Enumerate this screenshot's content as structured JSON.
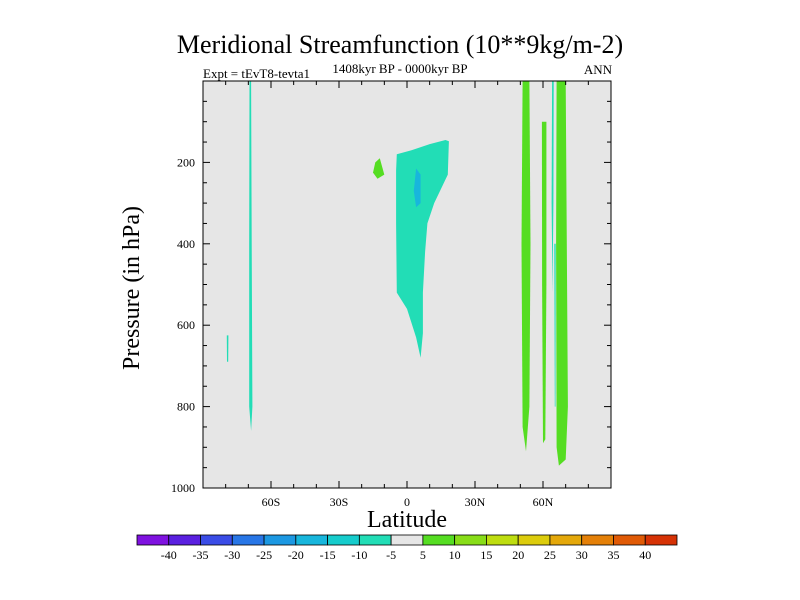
{
  "chart_data": {
    "type": "contour",
    "title": "Meridional Streamfunction (10**9kg/m-2)",
    "subtitle": "1408kyr BP - 0000kyr BP",
    "left_annotation": "Expt = tEvT8-tevta1",
    "right_annotation": "ANN",
    "xlabel": "Latitude",
    "ylabel": "Pressure (in hPa)",
    "xlim": [
      -90,
      90
    ],
    "ylim": [
      1000,
      0
    ],
    "x_ticks": [
      {
        "value": -60,
        "label": "60S"
      },
      {
        "value": -30,
        "label": "30S"
      },
      {
        "value": 0,
        "label": "0"
      },
      {
        "value": 30,
        "label": "30N"
      },
      {
        "value": 60,
        "label": "60N"
      }
    ],
    "y_ticks": [
      {
        "value": 200,
        "label": "200"
      },
      {
        "value": 400,
        "label": "400"
      },
      {
        "value": 600,
        "label": "600"
      },
      {
        "value": 800,
        "label": "800"
      },
      {
        "value": 1000,
        "label": "1000"
      }
    ],
    "background_color": "#e6e6e6",
    "regions": [
      {
        "name": "sh-high-lat-thin-band",
        "level": -10,
        "color": "#22ddb6",
        "points": [
          [
            -69.5,
            0
          ],
          [
            -68.8,
            0
          ],
          [
            -68.5,
            400
          ],
          [
            -68.2,
            800
          ],
          [
            -68.8,
            860
          ],
          [
            -69.6,
            800
          ],
          [
            -69.6,
            400
          ]
        ]
      },
      {
        "name": "sh-small-line",
        "level": -10,
        "color": "#22ddb6",
        "points": [
          [
            -79.5,
            625
          ],
          [
            -78.8,
            625
          ],
          [
            -78.9,
            690
          ],
          [
            -79.4,
            690
          ]
        ]
      },
      {
        "name": "tropical-negative-cell",
        "level": -10,
        "color": "#22ddb6",
        "points": [
          [
            -4.5,
            180
          ],
          [
            2,
            170
          ],
          [
            10,
            155
          ],
          [
            17,
            145
          ],
          [
            18.5,
            148
          ],
          [
            18,
            230
          ],
          [
            15,
            265
          ],
          [
            12,
            300
          ],
          [
            9,
            350
          ],
          [
            8,
            420
          ],
          [
            7,
            520
          ],
          [
            7,
            620
          ],
          [
            6,
            680
          ],
          [
            4,
            630
          ],
          [
            0,
            560
          ],
          [
            -4.5,
            520
          ],
          [
            -4.8,
            350
          ],
          [
            -4.8,
            220
          ]
        ]
      },
      {
        "name": "tropical-core",
        "level": -15,
        "color": "#18b6dc",
        "points": [
          [
            4,
            215
          ],
          [
            6,
            230
          ],
          [
            6,
            300
          ],
          [
            4,
            310
          ],
          [
            3,
            270
          ]
        ]
      },
      {
        "name": "sh-positive-patch",
        "level": 5,
        "color": "#55dd22",
        "points": [
          [
            -14,
            200
          ],
          [
            -12,
            190
          ],
          [
            -10,
            230
          ],
          [
            -13,
            240
          ],
          [
            -15,
            225
          ]
        ]
      },
      {
        "name": "nh-positive-band-1",
        "level": 5,
        "color": "#55dd22",
        "points": [
          [
            51,
            0
          ],
          [
            54,
            0
          ],
          [
            54.5,
            400
          ],
          [
            54,
            800
          ],
          [
            52.5,
            910
          ],
          [
            51,
            850
          ],
          [
            50.5,
            400
          ]
        ]
      },
      {
        "name": "nh-positive-band-2",
        "level": 5,
        "color": "#55dd22",
        "points": [
          [
            59.5,
            100
          ],
          [
            61.5,
            100
          ],
          [
            61.5,
            500
          ],
          [
            61,
            880
          ],
          [
            60,
            890
          ],
          [
            59.6,
            500
          ]
        ]
      },
      {
        "name": "nh-positive-band-3",
        "level": 5,
        "color": "#55dd22",
        "points": [
          [
            66,
            0
          ],
          [
            70,
            0
          ],
          [
            70.5,
            400
          ],
          [
            71,
            800
          ],
          [
            70,
            930
          ],
          [
            67,
            945
          ],
          [
            66,
            900
          ],
          [
            65.8,
            400
          ]
        ]
      },
      {
        "name": "nh-negative-line-1",
        "level": -10,
        "color": "#22ddb6",
        "points": [
          [
            64,
            0
          ],
          [
            64.7,
            0
          ],
          [
            64.6,
            300
          ],
          [
            64.2,
            520
          ],
          [
            63.8,
            300
          ]
        ]
      },
      {
        "name": "nh-negative-line-2",
        "level": -10,
        "color": "#22ddb6",
        "points": [
          [
            65,
            400
          ],
          [
            65.6,
            400
          ],
          [
            65.5,
            800
          ],
          [
            65.2,
            800
          ]
        ]
      }
    ],
    "colorbar": {
      "labels": [
        "-40",
        "-35",
        "-30",
        "-25",
        "-20",
        "-15",
        "-10",
        "-5",
        "5",
        "10",
        "15",
        "20",
        "25",
        "30",
        "35",
        "40"
      ],
      "colors": [
        "#7f12e0",
        "#5a20e0",
        "#3a4ce6",
        "#2876e6",
        "#1c98e2",
        "#18b6dc",
        "#16cccc",
        "#22ddb6",
        "#e6e6e6",
        "#55dd22",
        "#88dd18",
        "#bedd10",
        "#dccc0c",
        "#e4a80a",
        "#e48008",
        "#e05a06",
        "#d63205"
      ]
    }
  }
}
